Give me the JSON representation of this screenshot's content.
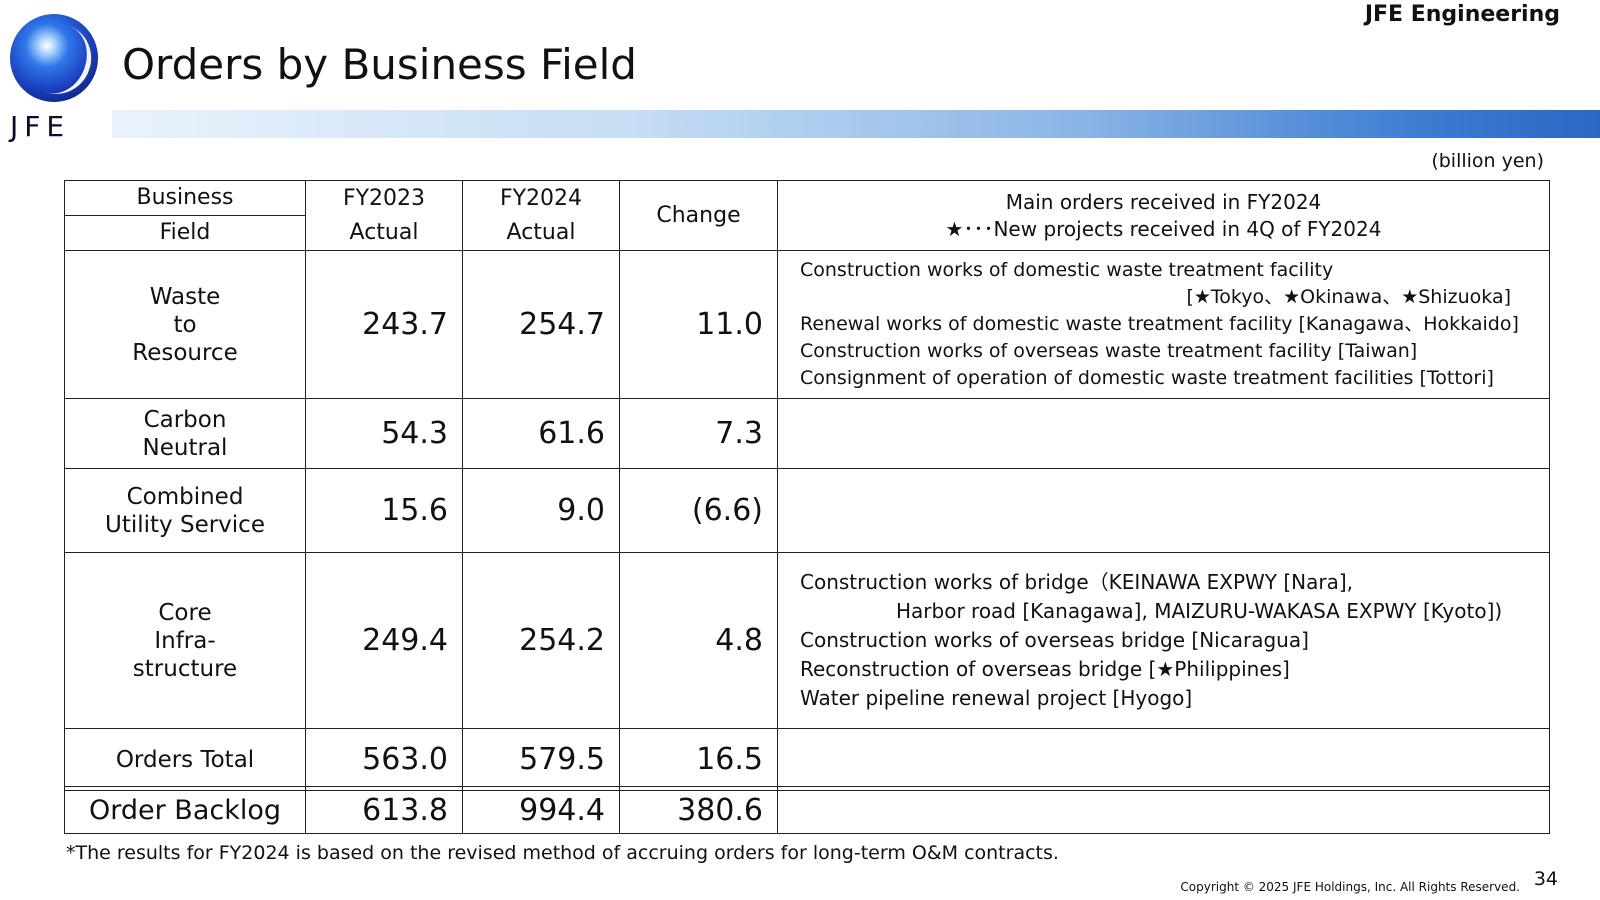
{
  "company": "JFE Engineering",
  "logo": {
    "text": "JFE"
  },
  "title": "Orders by Business Field",
  "unit": "(billion yen)",
  "header": {
    "field_top": "Business",
    "field_bottom": "Field",
    "fy2023_top": "FY2023",
    "fy2023_bottom": "Actual",
    "fy2024_top": "FY2024",
    "fy2024_bottom": "Actual",
    "change": "Change",
    "main_line1": "Main orders received in FY2024",
    "main_line2": "★･･･New projects received in 4Q of FY2024"
  },
  "rows": [
    {
      "field_lines": [
        "Waste",
        "to",
        "Resource"
      ],
      "fy2023": "243.7",
      "fy2024": "254.7",
      "change": "11.0",
      "notes": [
        "Construction works of domestic waste treatment facility",
        "[★Tokyo、★Okinawa、★Shizuoka]",
        "Renewal works of domestic waste treatment facility [Kanagawa、Hokkaido]",
        "Construction works of overseas waste treatment facility  [Taiwan]",
        "Consignment of operation of domestic waste treatment facilities [Tottori]"
      ]
    },
    {
      "field_lines": [
        "Carbon",
        "Neutral"
      ],
      "fy2023": "54.3",
      "fy2024": "61.6",
      "change": "7.3",
      "notes": []
    },
    {
      "field_lines": [
        "Combined",
        "Utility Service"
      ],
      "fy2023": "15.6",
      "fy2024": "9.0",
      "change": "(6.6)",
      "notes": []
    },
    {
      "field_lines": [
        "Core",
        "Infra-",
        "structure"
      ],
      "fy2023": "249.4",
      "fy2024": "254.2",
      "change": "4.8",
      "notes": [
        "Construction works of bridge（KEINAWA EXPWY [Nara],",
        "Harbor road [Kanagawa], MAIZURU-WAKASA EXPWY [Kyoto])",
        "Construction works of overseas bridge [Nicaragua]",
        "Reconstruction of overseas bridge [★Philippines]",
        "Water pipeline renewal project [Hyogo]"
      ]
    },
    {
      "field_lines": [
        "Orders Total"
      ],
      "fy2023": "563.0",
      "fy2024": "579.5",
      "change": "16.5",
      "notes": []
    }
  ],
  "backlog": {
    "label": "Order Backlog",
    "fy2023": "613.8",
    "fy2024": "994.4",
    "change": "380.6"
  },
  "footnote": "*The results for FY2024 is based on the revised method of accruing orders for long-term O&M contracts.",
  "copyright": "Copyright © 2025 JFE Holdings, Inc. All Rights Reserved.",
  "page_number": "34"
}
